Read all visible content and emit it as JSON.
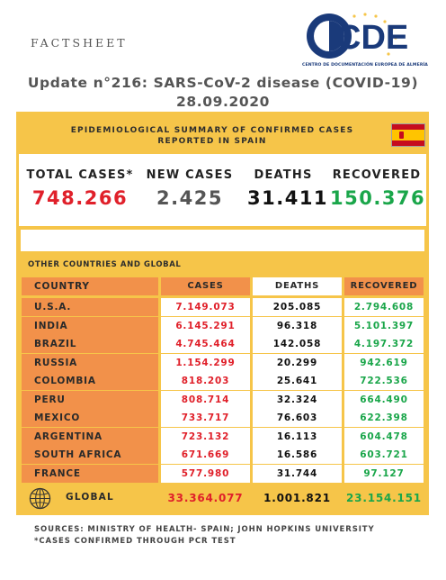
{
  "header": {
    "factsheet_label": "FACTSHEET",
    "logo_text": "CDE",
    "logo_subtitle": "CENTRO DE DOCUMENTACIÓN EUROPEA DE ALMERÍA",
    "update_title": "Update n°216: SARS-CoV-2 disease (COVID-19) 28.09.2020"
  },
  "spain": {
    "title": "EPIDEMIOLOGICAL SUMMARY OF CONFIRMED CASES REPORTED IN SPAIN",
    "flag_icon": "spain-flag-icon",
    "stats": {
      "total_cases_label": "TOTAL CASES*",
      "total_cases_value": "748.266",
      "new_cases_label": "NEW CASES",
      "new_cases_value": "2.425",
      "deaths_label": "DEATHS",
      "deaths_value": "31.411",
      "recovered_label": "RECOVERED",
      "recovered_value": "150.376"
    }
  },
  "global_table": {
    "title": "OTHER COUNTRIES AND GLOBAL",
    "headers": {
      "country": "COUNTRY",
      "cases": "CASES",
      "deaths": "DEATHS",
      "recovered": "RECOVERED"
    },
    "rows": [
      {
        "country": "U.S.A.",
        "cases": "7.149.073",
        "deaths": "205.085",
        "recovered": "2.794.608"
      },
      {
        "country": "INDIA",
        "cases": "6.145.291",
        "deaths": "96.318",
        "recovered": "5.101.397"
      },
      {
        "country": "BRAZIL",
        "cases": "4.745.464",
        "deaths": "142.058",
        "recovered": "4.197.372"
      },
      {
        "country": "RUSSIA",
        "cases": "1.154.299",
        "deaths": "20.299",
        "recovered": "942.619"
      },
      {
        "country": "COLOMBIA",
        "cases": "818.203",
        "deaths": "25.641",
        "recovered": "722.536"
      },
      {
        "country": "PERU",
        "cases": "808.714",
        "deaths": "32.324",
        "recovered": "664.490"
      },
      {
        "country": "MEXICO",
        "cases": "733.717",
        "deaths": "76.603",
        "recovered": "622.398"
      },
      {
        "country": "ARGENTINA",
        "cases": "723.132",
        "deaths": "16.113",
        "recovered": "604.478"
      },
      {
        "country": "SOUTH AFRICA",
        "cases": "671.669",
        "deaths": "16.586",
        "recovered": "603.721"
      },
      {
        "country": "FRANCE",
        "cases": "577.980",
        "deaths": "31.744",
        "recovered": "97.127"
      }
    ],
    "global": {
      "label": "GLOBAL",
      "icon": "globe-icon",
      "cases": "33.364.077",
      "deaths": "1.001.821",
      "recovered": "23.154.151"
    }
  },
  "footer": {
    "sources": "SOURCES: MINISTRY OF HEALTH- SPAIN; JOHN HOPKINS UNIVERSITY",
    "note": "*CASES CONFIRMED THROUGH PCR TEST"
  },
  "colors": {
    "yellow": "#f6c549",
    "orange": "#f2914a",
    "red": "#e0202a",
    "green": "#1aa64a",
    "logo_blue": "#1a3a7a"
  }
}
